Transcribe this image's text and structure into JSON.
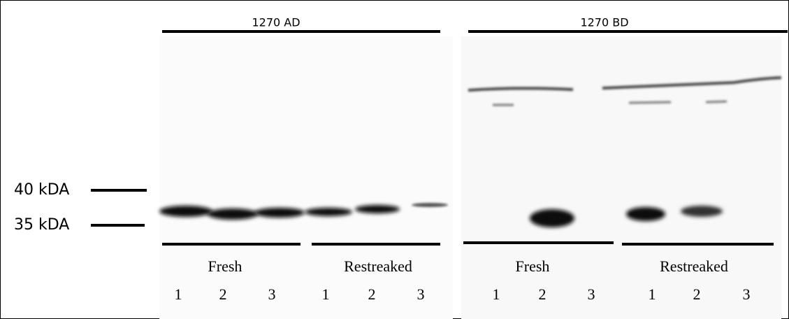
{
  "groups": [
    {
      "label": "1270 AD",
      "conditions": [
        {
          "label": "Fresh",
          "lanes": [
            "1",
            "2",
            "3"
          ]
        },
        {
          "label": "Restreaked",
          "lanes": [
            "1",
            "2",
            "3"
          ]
        }
      ]
    },
    {
      "label": "1270 BD",
      "conditions": [
        {
          "label": "Fresh",
          "lanes": [
            "1",
            "2",
            "3"
          ]
        },
        {
          "label": "Restreaked",
          "lanes": [
            "1",
            "2",
            "3"
          ]
        }
      ]
    }
  ],
  "markers": [
    {
      "label": "40 kDA"
    },
    {
      "label": "35 kDA"
    }
  ]
}
